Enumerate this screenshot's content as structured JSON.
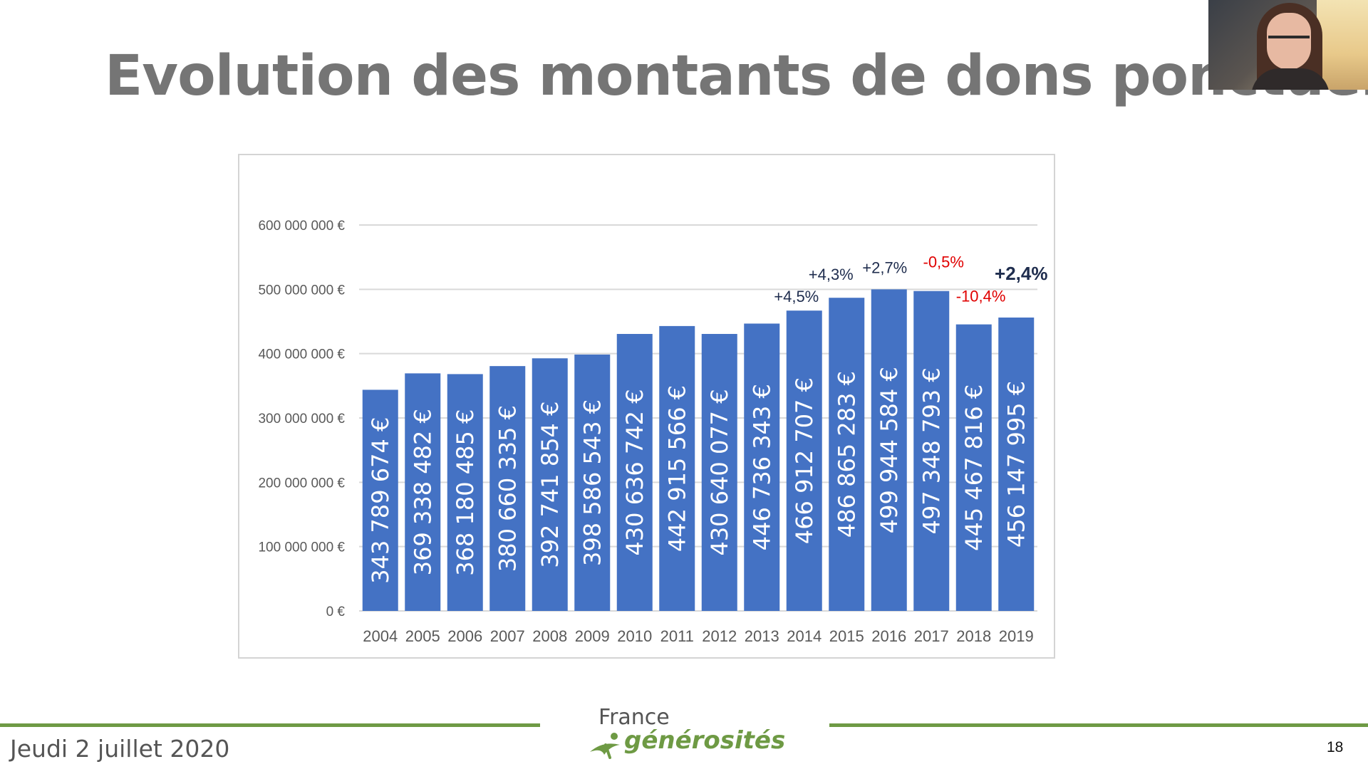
{
  "slide": {
    "title": "Evolution des montants de dons ponctuels",
    "date": "Jeudi 2 juillet 2020",
    "page_number": "18",
    "logo_top": "France",
    "logo_bottom": "générosités",
    "logo_icon": "swoosh-figure-icon"
  },
  "colors": {
    "bar": "#4472c4",
    "positive_change": "#1f2d4e",
    "negative_change": "#e00000",
    "footer_line": "#6e9a44",
    "title": "#757575"
  },
  "chart_data": {
    "type": "bar",
    "title": "",
    "xlabel": "",
    "ylabel": "",
    "ylim": [
      0,
      600000000
    ],
    "y_ticks": [
      {
        "value": 0,
        "label": "0 €"
      },
      {
        "value": 100000000,
        "label": "100 000 000 €"
      },
      {
        "value": 200000000,
        "label": "200 000 000 €"
      },
      {
        "value": 300000000,
        "label": "300 000 000 €"
      },
      {
        "value": 400000000,
        "label": "400 000 000 €"
      },
      {
        "value": 500000000,
        "label": "500 000 000 €"
      },
      {
        "value": 600000000,
        "label": "600 000 000 €"
      }
    ],
    "grid": true,
    "categories": [
      "2004",
      "2005",
      "2006",
      "2007",
      "2008",
      "2009",
      "2010",
      "2011",
      "2012",
      "2013",
      "2014",
      "2015",
      "2016",
      "2017",
      "2018",
      "2019"
    ],
    "values": [
      343789674,
      369338482,
      368180485,
      380660335,
      392741854,
      398586543,
      430636742,
      442915566,
      430640077,
      446736343,
      466912707,
      486865283,
      499944584,
      497348793,
      445467816,
      456147995
    ],
    "data_labels": [
      "343 789 674 €",
      "369 338 482 €",
      "368 180 485 €",
      "380 660 335 €",
      "392 741 854 €",
      "398 586 543 €",
      "430 636 742 €",
      "442 915 566 €",
      "430 640 077 €",
      "446 736 343 €",
      "466 912 707 €",
      "486 865 283 €",
      "499 944 584 €",
      "497 348 793 €",
      "445 467 816 €",
      "456 147 995 €"
    ],
    "annotations": [
      {
        "category": "2014",
        "text": "+4,5%",
        "sign": "positive",
        "bold": false
      },
      {
        "category": "2015",
        "text": "+4,3%",
        "sign": "positive",
        "bold": false
      },
      {
        "category": "2016",
        "text": "+2,7%",
        "sign": "positive",
        "bold": false
      },
      {
        "category": "2017",
        "text": "-0,5%",
        "sign": "negative",
        "bold": false
      },
      {
        "category": "2018",
        "text": "-10,4%",
        "sign": "negative",
        "bold": false
      },
      {
        "category": "2019",
        "text": "+2,4%",
        "sign": "positive",
        "bold": true
      }
    ]
  }
}
